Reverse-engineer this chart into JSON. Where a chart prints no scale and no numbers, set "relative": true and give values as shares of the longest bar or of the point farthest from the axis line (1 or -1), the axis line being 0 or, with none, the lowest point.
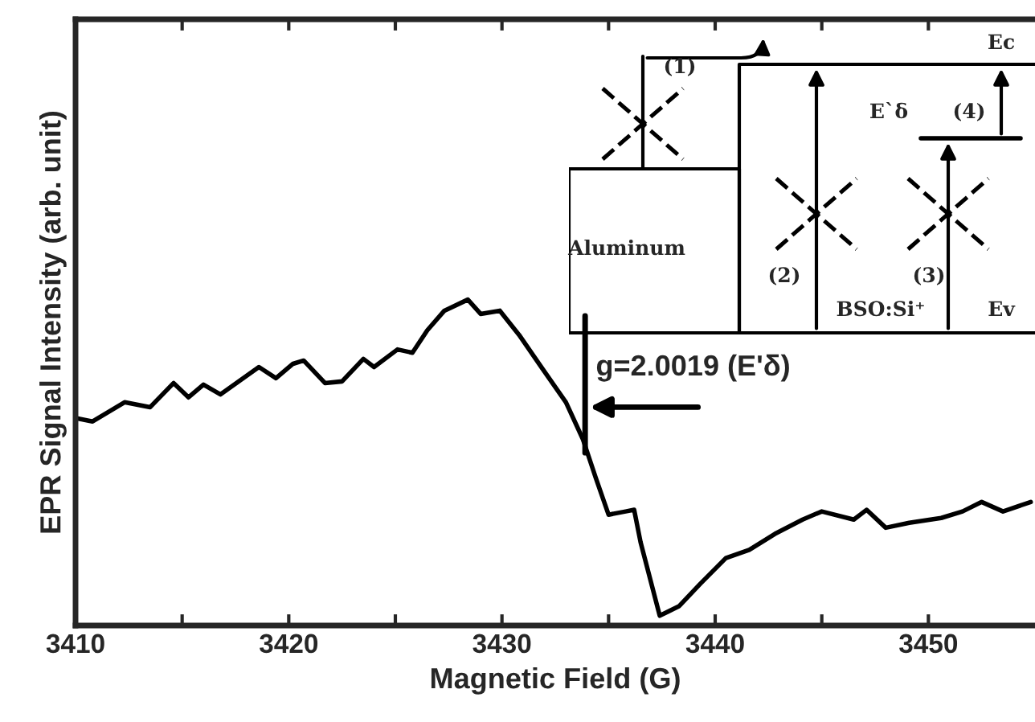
{
  "chart_data": {
    "type": "line",
    "relative": true,
    "xlabel": "Magnetic Field (G)",
    "ylabel": "EPR Signal Intensity (arb. unit)",
    "xlim": [
      3410,
      3455
    ],
    "xticks": [
      3410,
      {
        "value": 3415,
        "label": null
      },
      3420,
      {
        "value": 3425,
        "label": null
      },
      3430,
      {
        "value": 3435,
        "label": null
      },
      3440,
      {
        "value": 3445,
        "label": null
      },
      3450
    ],
    "grid": false,
    "legend": false,
    "marker": "none",
    "line_style": "solid",
    "series": [
      {
        "color": "#000000",
        "x": [
          3410.1,
          3410.8,
          3412.3,
          3413.5,
          3414.6,
          3415.3,
          3416.0,
          3416.8,
          3418.6,
          3419.4,
          3420.2,
          3420.7,
          3421.7,
          3422.5,
          3423.5,
          3424.0,
          3425.1,
          3425.8,
          3426.5,
          3427.3,
          3428.4,
          3429.0,
          3429.9,
          3430.8,
          3431.9,
          3433.0,
          3433.8,
          3434.4,
          3435.0,
          3435.8,
          3436.2,
          3436.5,
          3437.4,
          3438.3,
          3439.3,
          3440.5,
          3441.6,
          3442.8,
          3444.1,
          3445.0,
          3446.5,
          3447.1,
          3448.0,
          3449.1,
          3450.6,
          3451.6,
          3452.5,
          3453.5,
          3454.8
        ],
        "values": [
          0.635,
          0.626,
          0.685,
          0.67,
          0.744,
          0.7,
          0.739,
          0.709,
          0.793,
          0.759,
          0.803,
          0.813,
          0.744,
          0.749,
          0.818,
          0.793,
          0.847,
          0.837,
          0.906,
          0.966,
          1.0,
          0.956,
          0.966,
          0.892,
          0.788,
          0.685,
          0.571,
          0.453,
          0.34,
          0.35,
          0.355,
          0.256,
          0.03,
          0.059,
          0.128,
          0.207,
          0.232,
          0.281,
          0.325,
          0.35,
          0.325,
          0.355,
          0.3,
          0.315,
          0.33,
          0.35,
          0.379,
          0.35,
          0.379
        ]
      }
    ],
    "annotations": [
      {
        "text": "g=2.0019 (E'δ)",
        "x": 3433.9,
        "y": 0.57
      },
      "(1)",
      "Aluminum",
      "(2)",
      "(3)",
      "BSO:Si⁺",
      "Ev",
      "Ec",
      "E`δ",
      "(4)"
    ]
  }
}
